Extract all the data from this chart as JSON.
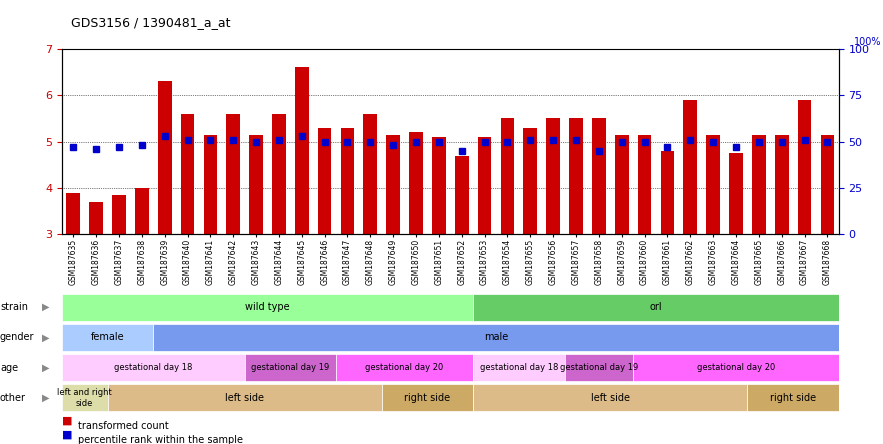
{
  "title": "GDS3156 / 1390481_a_at",
  "samples": [
    "GSM187635",
    "GSM187636",
    "GSM187637",
    "GSM187638",
    "GSM187639",
    "GSM187640",
    "GSM187641",
    "GSM187642",
    "GSM187643",
    "GSM187644",
    "GSM187645",
    "GSM187646",
    "GSM187647",
    "GSM187648",
    "GSM187649",
    "GSM187650",
    "GSM187651",
    "GSM187652",
    "GSM187653",
    "GSM187654",
    "GSM187655",
    "GSM187656",
    "GSM187657",
    "GSM187658",
    "GSM187659",
    "GSM187660",
    "GSM187661",
    "GSM187662",
    "GSM187663",
    "GSM187664",
    "GSM187665",
    "GSM187666",
    "GSM187667",
    "GSM187668"
  ],
  "bar_values": [
    3.9,
    3.7,
    3.85,
    4.0,
    6.3,
    5.6,
    5.15,
    5.6,
    5.15,
    5.6,
    6.6,
    5.3,
    5.3,
    5.6,
    5.15,
    5.2,
    5.1,
    4.7,
    5.1,
    5.5,
    5.3,
    5.5,
    5.5,
    5.5,
    5.15,
    5.15,
    4.8,
    5.9,
    5.15,
    4.75,
    5.15,
    5.15,
    5.9,
    5.15
  ],
  "percentile_values": [
    47,
    46,
    47,
    48,
    53,
    51,
    51,
    51,
    50,
    51,
    53,
    50,
    50,
    50,
    48,
    50,
    50,
    45,
    50,
    50,
    51,
    51,
    51,
    45,
    50,
    50,
    47,
    51,
    50,
    47,
    50,
    50,
    51,
    50
  ],
  "bar_color": "#cc0000",
  "dot_color": "#0000cc",
  "ylim_left": [
    3,
    7
  ],
  "ylim_right": [
    0,
    100
  ],
  "yticks_left": [
    3,
    4,
    5,
    6,
    7
  ],
  "yticks_right": [
    0,
    25,
    50,
    75,
    100
  ],
  "grid_values": [
    4,
    5,
    6
  ],
  "annotation_rows": [
    {
      "label": "strain",
      "segments": [
        {
          "text": "wild type",
          "start": 0,
          "end": 18,
          "color": "#99ff99"
        },
        {
          "text": "orl",
          "start": 18,
          "end": 34,
          "color": "#66cc66"
        }
      ]
    },
    {
      "label": "gender",
      "segments": [
        {
          "text": "female",
          "start": 0,
          "end": 4,
          "color": "#aaccff"
        },
        {
          "text": "male",
          "start": 4,
          "end": 34,
          "color": "#7799ee"
        }
      ]
    },
    {
      "label": "age",
      "segments": [
        {
          "text": "gestational day 18",
          "start": 0,
          "end": 8,
          "color": "#ffccff"
        },
        {
          "text": "gestational day 19",
          "start": 8,
          "end": 12,
          "color": "#cc66cc"
        },
        {
          "text": "gestational day 20",
          "start": 12,
          "end": 18,
          "color": "#ff66ff"
        },
        {
          "text": "gestational day 18",
          "start": 18,
          "end": 22,
          "color": "#ffccff"
        },
        {
          "text": "gestational day 19",
          "start": 22,
          "end": 25,
          "color": "#cc66cc"
        },
        {
          "text": "gestational day 20",
          "start": 25,
          "end": 34,
          "color": "#ff66ff"
        }
      ]
    },
    {
      "label": "other",
      "segments": [
        {
          "text": "left and right\nside",
          "start": 0,
          "end": 2,
          "color": "#ddddaa"
        },
        {
          "text": "left side",
          "start": 2,
          "end": 14,
          "color": "#ddbb88"
        },
        {
          "text": "right side",
          "start": 14,
          "end": 18,
          "color": "#ccaa66"
        },
        {
          "text": "left side",
          "start": 18,
          "end": 30,
          "color": "#ddbb88"
        },
        {
          "text": "right side",
          "start": 30,
          "end": 34,
          "color": "#ccaa66"
        }
      ]
    }
  ],
  "legend": [
    {
      "label": "transformed count",
      "color": "#cc0000"
    },
    {
      "label": "percentile rank within the sample",
      "color": "#0000cc"
    }
  ]
}
